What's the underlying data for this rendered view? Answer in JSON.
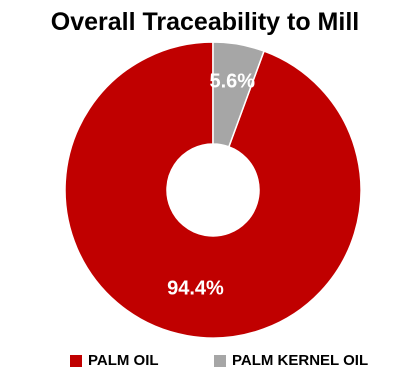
{
  "chart_data": {
    "type": "pie",
    "title": "Overall Traceability to Mill",
    "donut": true,
    "categories": [
      "PALM OIL",
      "PALM KERNEL OIL"
    ],
    "values": [
      94.4,
      5.6
    ],
    "labels": [
      "94.4%",
      "5.6%"
    ],
    "colors": [
      "#c00000",
      "#a6a6a6"
    ],
    "legend": "bottom"
  }
}
